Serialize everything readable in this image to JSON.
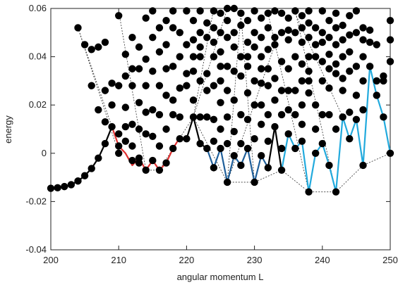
{
  "chart_data": {
    "type": "scatter",
    "xlabel": "angular momentum L",
    "ylabel": "energy",
    "xlim": [
      200,
      250
    ],
    "ylim": [
      -0.04,
      0.06
    ],
    "xticks": [
      200,
      210,
      220,
      230,
      240,
      250
    ],
    "yticks": [
      -0.04,
      -0.02,
      0,
      0.02,
      0.04,
      0.06
    ],
    "ytick_labels": [
      "-0.04",
      "-0.02",
      "0",
      "0.02",
      "0.04",
      "0.06"
    ],
    "grid": false,
    "colors": {
      "points": "#000000",
      "dashed": "#333333",
      "black_segment": "#000000",
      "red_segment": "#e03030",
      "dark_blue_segment": "#1f5f9a",
      "light_blue_segment": "#22aadd"
    },
    "lowest_states": [
      [
        200,
        -0.0145
      ],
      [
        201,
        -0.0143
      ],
      [
        202,
        -0.0138
      ],
      [
        203,
        -0.013
      ],
      [
        204,
        -0.0115
      ],
      [
        205,
        -0.0093
      ],
      [
        206,
        -0.0063
      ],
      [
        207,
        -0.002
      ],
      [
        208,
        0.004
      ],
      [
        209,
        0.011
      ]
    ],
    "segments": [
      {
        "color": "#000000",
        "points": [
          [
            200,
            -0.0145
          ],
          [
            201,
            -0.0143
          ],
          [
            202,
            -0.0138
          ],
          [
            203,
            -0.013
          ],
          [
            204,
            -0.0115
          ],
          [
            205,
            -0.0093
          ],
          [
            206,
            -0.0063
          ],
          [
            207,
            -0.002
          ],
          [
            208,
            0.004
          ],
          [
            209,
            0.011
          ]
        ]
      },
      {
        "color": "#e03030",
        "points": [
          [
            209,
            0.011
          ],
          [
            210,
            0.003
          ],
          [
            211,
            0.0
          ],
          [
            212,
            -0.005
          ],
          [
            213,
            -0.002
          ],
          [
            214,
            -0.007
          ],
          [
            215,
            -0.003
          ],
          [
            216,
            -0.007
          ],
          [
            217,
            -0.004
          ],
          [
            218,
            0.002
          ],
          [
            219,
            0.0065
          ],
          [
            220,
            0.006
          ]
        ]
      },
      {
        "color": "#000000",
        "points": [
          [
            220,
            0.006
          ],
          [
            221,
            0.015
          ],
          [
            222,
            0.004
          ],
          [
            223,
            0.002
          ]
        ]
      },
      {
        "color": "#1f5f9a",
        "points": [
          [
            223,
            0.002
          ],
          [
            224,
            -0.006
          ],
          [
            225,
            0.002
          ],
          [
            226,
            -0.012
          ],
          [
            227,
            -0.001
          ],
          [
            228,
            -0.005
          ],
          [
            229,
            0.002
          ],
          [
            230,
            -0.012
          ],
          [
            231,
            -0.001
          ],
          [
            232,
            -0.006
          ]
        ]
      },
      {
        "color": "#000000",
        "points": [
          [
            232,
            -0.006
          ],
          [
            233,
            0.011
          ],
          [
            234,
            -0.007
          ]
        ]
      },
      {
        "color": "#22aadd",
        "points": [
          [
            234,
            -0.007
          ],
          [
            235,
            0.008
          ],
          [
            236,
            0.002
          ],
          [
            237,
            0.005
          ],
          [
            238,
            -0.016
          ],
          [
            239,
            0.0
          ],
          [
            240,
            0.004
          ],
          [
            241,
            -0.005
          ],
          [
            242,
            -0.016
          ],
          [
            243,
            0.015
          ],
          [
            244,
            0.006
          ],
          [
            245,
            0.014
          ],
          [
            246,
            -0.005
          ],
          [
            247,
            0.036
          ],
          [
            248,
            0.024
          ],
          [
            249,
            0.015
          ],
          [
            250,
            0.0
          ]
        ]
      }
    ],
    "dashed_paths": [
      [
        [
          204,
          0.052
        ],
        [
          209,
          0.011
        ]
      ],
      [
        [
          204,
          0.052
        ],
        [
          210,
          0.0
        ]
      ],
      [
        [
          210,
          0.059
        ],
        [
          214,
          -0.007
        ],
        [
          216,
          -0.007
        ],
        [
          218,
          0.002
        ],
        [
          221,
          0.015
        ],
        [
          224,
          0.06
        ]
      ],
      [
        [
          221,
          0.015
        ],
        [
          226,
          -0.012
        ],
        [
          230,
          -0.012
        ],
        [
          234,
          -0.007
        ],
        [
          238,
          -0.016
        ],
        [
          242,
          -0.016
        ],
        [
          246,
          -0.005
        ],
        [
          250,
          0.0
        ]
      ],
      [
        [
          226,
          0.06
        ],
        [
          221,
          0.015
        ]
      ],
      [
        [
          226,
          -0.012
        ],
        [
          228,
          0.058
        ],
        [
          230,
          -0.012
        ]
      ],
      [
        [
          232,
          0.058
        ],
        [
          238,
          -0.016
        ]
      ],
      [
        [
          236,
          0.059
        ],
        [
          242,
          -0.016
        ]
      ],
      [
        [
          233,
          0.045
        ],
        [
          226,
          -0.012
        ]
      ],
      [
        [
          236,
          0.058
        ],
        [
          243,
          0.015
        ]
      ]
    ],
    "points": [
      [
        204,
        0.052
      ],
      [
        205,
        0.045
      ],
      [
        206,
        0.028
      ],
      [
        206,
        0.043
      ],
      [
        207,
        0.044
      ],
      [
        207,
        0.018
      ],
      [
        208,
        0.046
      ],
      [
        208,
        0.026
      ],
      [
        208,
        0.013
      ],
      [
        209,
        0.029
      ],
      [
        209,
        0.02
      ],
      [
        210,
        0.057
      ],
      [
        210,
        0.028
      ],
      [
        210,
        0.008
      ],
      [
        210,
        0.003
      ],
      [
        210,
        0.0
      ],
      [
        211,
        0.041
      ],
      [
        211,
        0.032
      ],
      [
        211,
        0.019
      ],
      [
        211,
        0.011
      ],
      [
        211,
        0.005
      ],
      [
        212,
        0.048
      ],
      [
        212,
        0.035
      ],
      [
        212,
        0.028
      ],
      [
        212,
        0.012
      ],
      [
        212,
        0.003
      ],
      [
        212,
        -0.003
      ],
      [
        213,
        0.044
      ],
      [
        213,
        0.035
      ],
      [
        213,
        0.021
      ],
      [
        213,
        0.01
      ],
      [
        213,
        -0.002
      ],
      [
        213,
        -0.004
      ],
      [
        214,
        0.056
      ],
      [
        214,
        0.039
      ],
      [
        214,
        0.028
      ],
      [
        214,
        0.017
      ],
      [
        214,
        0.008
      ],
      [
        214,
        -0.007
      ],
      [
        215,
        0.059
      ],
      [
        215,
        0.048
      ],
      [
        215,
        0.034
      ],
      [
        215,
        0.018
      ],
      [
        215,
        0.007
      ],
      [
        215,
        -0.003
      ],
      [
        216,
        0.052
      ],
      [
        216,
        0.042
      ],
      [
        216,
        0.028
      ],
      [
        216,
        0.016
      ],
      [
        216,
        0.003
      ],
      [
        216,
        -0.007
      ],
      [
        217,
        0.055
      ],
      [
        217,
        0.045
      ],
      [
        217,
        0.035
      ],
      [
        217,
        0.024
      ],
      [
        217,
        0.01
      ],
      [
        217,
        -0.004
      ],
      [
        218,
        0.059
      ],
      [
        218,
        0.052
      ],
      [
        218,
        0.036
      ],
      [
        218,
        0.022
      ],
      [
        218,
        0.016
      ],
      [
        218,
        0.002
      ],
      [
        219,
        0.05
      ],
      [
        219,
        0.04
      ],
      [
        219,
        0.027
      ],
      [
        219,
        0.015
      ],
      [
        219,
        0.006
      ],
      [
        220,
        0.059
      ],
      [
        220,
        0.045
      ],
      [
        220,
        0.033
      ],
      [
        220,
        0.028
      ],
      [
        220,
        0.006
      ],
      [
        221,
        0.055
      ],
      [
        221,
        0.047
      ],
      [
        221,
        0.04
      ],
      [
        221,
        0.034
      ],
      [
        221,
        0.022
      ],
      [
        221,
        0.015
      ],
      [
        222,
        0.059
      ],
      [
        222,
        0.05
      ],
      [
        222,
        0.044
      ],
      [
        222,
        0.04
      ],
      [
        222,
        0.03
      ],
      [
        222,
        0.015
      ],
      [
        222,
        0.004
      ],
      [
        223,
        0.054
      ],
      [
        223,
        0.048
      ],
      [
        223,
        0.033
      ],
      [
        223,
        0.026
      ],
      [
        223,
        0.015
      ],
      [
        223,
        0.002
      ],
      [
        224,
        0.059
      ],
      [
        224,
        0.052
      ],
      [
        224,
        0.046
      ],
      [
        224,
        0.04
      ],
      [
        224,
        0.028
      ],
      [
        224,
        0.014
      ],
      [
        224,
        0.005
      ],
      [
        224,
        -0.006
      ],
      [
        225,
        0.058
      ],
      [
        225,
        0.05
      ],
      [
        225,
        0.042
      ],
      [
        225,
        0.036
      ],
      [
        225,
        0.03
      ],
      [
        225,
        0.021
      ],
      [
        225,
        0.01
      ],
      [
        225,
        0.002
      ],
      [
        226,
        0.06
      ],
      [
        226,
        0.055
      ],
      [
        226,
        0.048
      ],
      [
        226,
        0.036
      ],
      [
        226,
        0.026
      ],
      [
        226,
        0.015
      ],
      [
        226,
        0.004
      ],
      [
        226,
        -0.012
      ],
      [
        227,
        0.06
      ],
      [
        227,
        0.05
      ],
      [
        227,
        0.044
      ],
      [
        227,
        0.034
      ],
      [
        227,
        0.022
      ],
      [
        227,
        0.009
      ],
      [
        227,
        -0.001
      ],
      [
        228,
        0.058
      ],
      [
        228,
        0.053
      ],
      [
        228,
        0.04
      ],
      [
        228,
        0.032
      ],
      [
        228,
        0.016
      ],
      [
        228,
        0.004
      ],
      [
        228,
        -0.005
      ],
      [
        229,
        0.055
      ],
      [
        229,
        0.046
      ],
      [
        229,
        0.04
      ],
      [
        229,
        0.036
      ],
      [
        229,
        0.025
      ],
      [
        229,
        0.014
      ],
      [
        229,
        0.002
      ],
      [
        230,
        0.059
      ],
      [
        230,
        0.05
      ],
      [
        230,
        0.044
      ],
      [
        230,
        0.03
      ],
      [
        230,
        0.02
      ],
      [
        230,
        0.006
      ],
      [
        230,
        -0.012
      ],
      [
        231,
        0.056
      ],
      [
        231,
        0.048
      ],
      [
        231,
        0.04
      ],
      [
        231,
        0.035
      ],
      [
        231,
        0.029
      ],
      [
        231,
        0.02
      ],
      [
        231,
        0.012
      ],
      [
        231,
        -0.001
      ],
      [
        232,
        0.058
      ],
      [
        232,
        0.052
      ],
      [
        232,
        0.043
      ],
      [
        232,
        0.035
      ],
      [
        232,
        0.028
      ],
      [
        232,
        0.016
      ],
      [
        232,
        0.005
      ],
      [
        232,
        -0.006
      ],
      [
        233,
        0.059
      ],
      [
        233,
        0.048
      ],
      [
        233,
        0.045
      ],
      [
        233,
        0.031
      ],
      [
        233,
        0.022
      ],
      [
        233,
        0.011
      ],
      [
        234,
        0.058
      ],
      [
        234,
        0.05
      ],
      [
        234,
        0.038
      ],
      [
        234,
        0.026
      ],
      [
        234,
        0.016
      ],
      [
        234,
        0.002
      ],
      [
        234,
        -0.007
      ],
      [
        235,
        0.056
      ],
      [
        235,
        0.051
      ],
      [
        235,
        0.047
      ],
      [
        235,
        0.035
      ],
      [
        235,
        0.026
      ],
      [
        235,
        0.018
      ],
      [
        235,
        0.008
      ],
      [
        236,
        0.059
      ],
      [
        236,
        0.05
      ],
      [
        236,
        0.04
      ],
      [
        236,
        0.026
      ],
      [
        236,
        0.016
      ],
      [
        236,
        0.002
      ],
      [
        237,
        0.057
      ],
      [
        237,
        0.052
      ],
      [
        237,
        0.046
      ],
      [
        237,
        0.037
      ],
      [
        237,
        0.03
      ],
      [
        237,
        0.02
      ],
      [
        237,
        0.012
      ],
      [
        237,
        0.005
      ],
      [
        238,
        0.059
      ],
      [
        238,
        0.054
      ],
      [
        238,
        0.048
      ],
      [
        238,
        0.04
      ],
      [
        238,
        0.034
      ],
      [
        238,
        0.03
      ],
      [
        238,
        0.025
      ],
      [
        238,
        -0.016
      ],
      [
        239,
        0.052
      ],
      [
        239,
        0.045
      ],
      [
        239,
        0.04
      ],
      [
        239,
        0.02
      ],
      [
        239,
        0.01
      ],
      [
        239,
        0.0
      ],
      [
        240,
        0.059
      ],
      [
        240,
        0.05
      ],
      [
        240,
        0.046
      ],
      [
        240,
        0.038
      ],
      [
        240,
        0.03
      ],
      [
        240,
        0.016
      ],
      [
        240,
        0.004
      ],
      [
        241,
        0.055
      ],
      [
        241,
        0.048
      ],
      [
        241,
        0.041
      ],
      [
        241,
        0.035
      ],
      [
        241,
        0.027
      ],
      [
        241,
        0.016
      ],
      [
        241,
        -0.005
      ],
      [
        242,
        0.058
      ],
      [
        242,
        0.052
      ],
      [
        242,
        0.045
      ],
      [
        242,
        0.037
      ],
      [
        242,
        0.033
      ],
      [
        242,
        0.01
      ],
      [
        242,
        -0.016
      ],
      [
        243,
        0.053
      ],
      [
        243,
        0.047
      ],
      [
        243,
        0.04
      ],
      [
        243,
        0.031
      ],
      [
        243,
        0.026
      ],
      [
        243,
        0.015
      ],
      [
        244,
        0.057
      ],
      [
        244,
        0.049
      ],
      [
        244,
        0.042
      ],
      [
        244,
        0.034
      ],
      [
        244,
        0.017
      ],
      [
        244,
        0.006
      ],
      [
        245,
        0.059
      ],
      [
        245,
        0.05
      ],
      [
        245,
        0.036
      ],
      [
        245,
        0.024
      ],
      [
        245,
        0.014
      ],
      [
        246,
        0.052
      ],
      [
        246,
        0.047
      ],
      [
        246,
        0.04
      ],
      [
        246,
        0.03
      ],
      [
        246,
        0.018
      ],
      [
        246,
        -0.005
      ],
      [
        247,
        0.051
      ],
      [
        247,
        0.046
      ],
      [
        247,
        0.036
      ],
      [
        248,
        0.045
      ],
      [
        248,
        0.03
      ],
      [
        248,
        0.024
      ],
      [
        249,
        0.032
      ],
      [
        249,
        0.03
      ],
      [
        249,
        0.015
      ],
      [
        250,
        0.055
      ],
      [
        250,
        0.047
      ],
      [
        250,
        0.038
      ],
      [
        250,
        0.0
      ]
    ]
  }
}
